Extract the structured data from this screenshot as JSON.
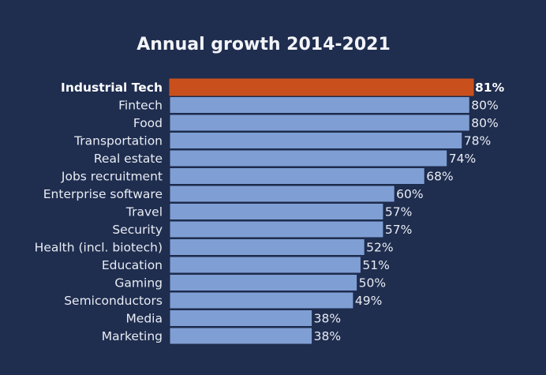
{
  "chart_data": {
    "type": "bar",
    "orientation": "horizontal",
    "title": "Annual growth 2014-2021",
    "categories": [
      "Industrial Tech",
      "Fintech",
      "Food",
      "Transportation",
      "Real estate",
      "Jobs recruitment",
      "Enterprise software",
      "Travel",
      "Security",
      "Health (incl. biotech)",
      "Education",
      "Gaming",
      "Semiconductors",
      "Media",
      "Marketing"
    ],
    "values": [
      81,
      80,
      80,
      78,
      74,
      68,
      60,
      57,
      57,
      52,
      51,
      50,
      49,
      38,
      38
    ],
    "value_labels": [
      "81%",
      "80%",
      "80%",
      "78%",
      "74%",
      "68%",
      "60%",
      "57%",
      "57%",
      "52%",
      "51%",
      "50%",
      "49%",
      "38%",
      "38%"
    ],
    "unit": "%",
    "highlight_index": 0,
    "xlim": [
      0,
      81
    ],
    "grid": false,
    "colors": {
      "background": "#1f2d4f",
      "bar": "#7f9fd4",
      "highlight": "#c9501c",
      "separator": "#1f2d4f",
      "text": "#e8ecf3"
    }
  }
}
